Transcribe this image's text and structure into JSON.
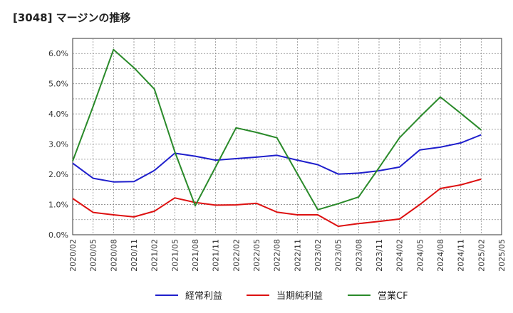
{
  "header": {
    "title": "[3048]  マージンの推移"
  },
  "chart_data": {
    "type": "line",
    "title": "[3048]  マージンの推移",
    "xlabel": "",
    "ylabel": "",
    "x": [
      "2020/02",
      "2020/05",
      "2020/08",
      "2020/11",
      "2021/02",
      "2021/05",
      "2021/08",
      "2021/11",
      "2022/02",
      "2022/05",
      "2022/08",
      "2022/11",
      "2023/02",
      "2023/05",
      "2023/08",
      "2023/11",
      "2024/02",
      "2024/05",
      "2024/08",
      "2024/11",
      "2025/02",
      "2025/05"
    ],
    "y_ticks": [
      "0.0%",
      "1.0%",
      "2.0%",
      "3.0%",
      "4.0%",
      "5.0%",
      "6.0%"
    ],
    "ylim": [
      0,
      6.5
    ],
    "grid": true,
    "legend_position": "bottom",
    "series": [
      {
        "name": "経常利益",
        "color": "#1f1fcc",
        "values": [
          2.37,
          1.87,
          1.75,
          1.76,
          2.13,
          2.7,
          2.6,
          2.47,
          2.52,
          2.57,
          2.63,
          2.47,
          2.32,
          2.01,
          2.04,
          2.12,
          2.24,
          2.81,
          2.9,
          3.04,
          3.31,
          null
        ]
      },
      {
        "name": "当期純利益",
        "color": "#dd1111",
        "values": [
          1.2,
          0.74,
          0.66,
          0.59,
          0.78,
          1.22,
          1.07,
          0.98,
          0.99,
          1.04,
          0.75,
          0.66,
          0.66,
          0.28,
          0.37,
          0.44,
          0.52,
          1.0,
          1.53,
          1.65,
          1.84,
          null
        ]
      },
      {
        "name": "営業CF",
        "color": "#2a8a2a",
        "values": [
          2.44,
          4.25,
          6.13,
          5.53,
          4.82,
          2.75,
          0.96,
          2.25,
          3.54,
          3.39,
          3.21,
          2.02,
          0.83,
          1.03,
          1.25,
          2.22,
          3.21,
          3.9,
          4.56,
          4.02,
          3.47,
          null
        ]
      }
    ]
  }
}
